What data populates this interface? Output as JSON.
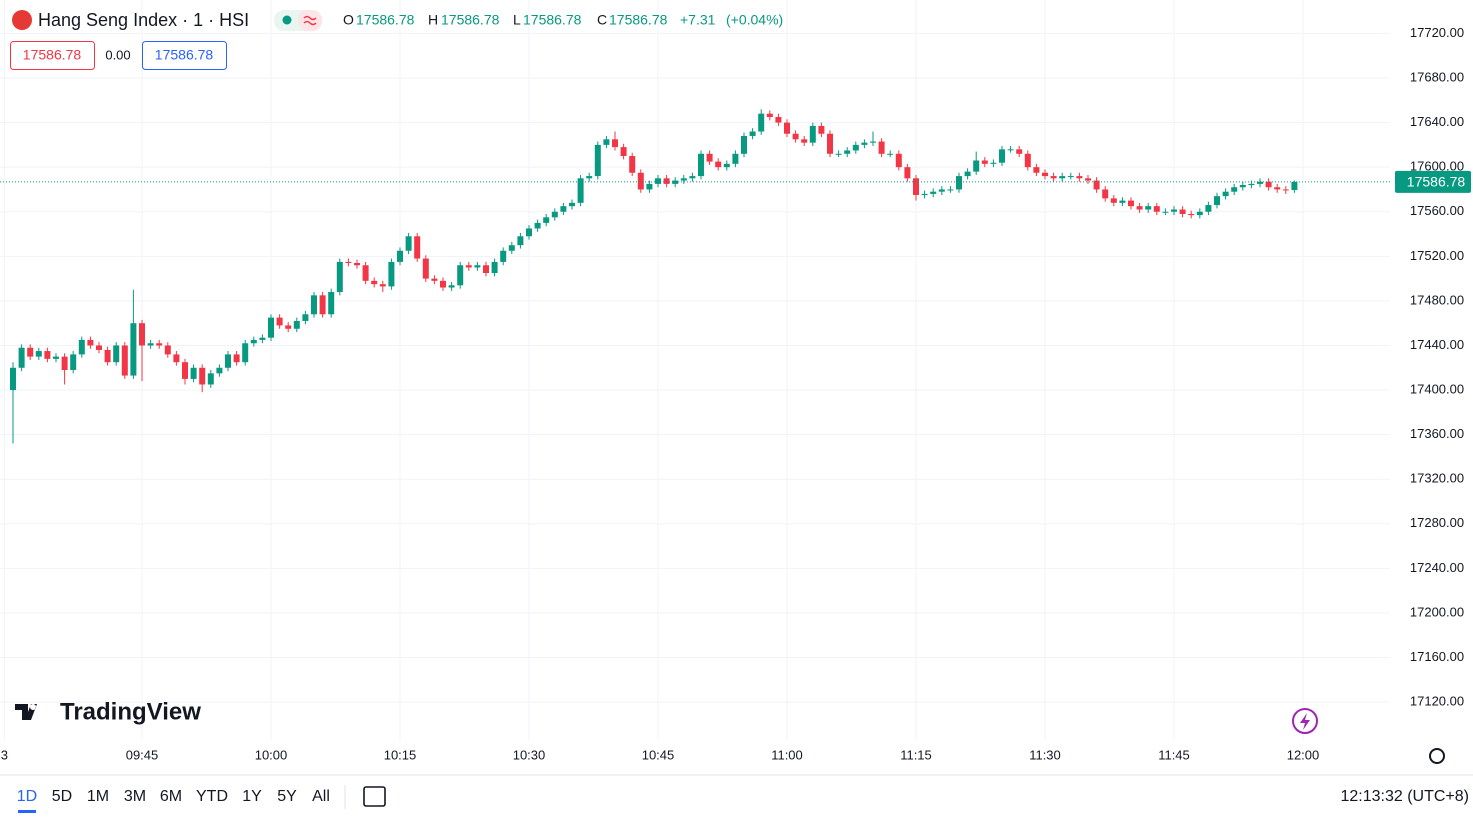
{
  "chart_data": {
    "type": "candlestick",
    "title": "Hang Seng Index · 1 · HSI",
    "ohlc_legend": [
      {
        "label": "O",
        "value": 17586.78
      },
      {
        "label": "H",
        "value": 17586.78
      },
      {
        "label": "L",
        "value": 17586.78
      },
      {
        "label": "C",
        "value": 17586.78
      }
    ],
    "change": "+7.31",
    "change_pct": "(+0.04%)",
    "price_boxes": [
      "17586.78",
      "0.00",
      "17586.78"
    ],
    "up_color": "#089981",
    "down_color": "#f23645",
    "grid": true,
    "ylim": [
      17086,
      17750
    ],
    "yticks": [
      {
        "value": 17120,
        "label": "17120.00"
      },
      {
        "value": 17160,
        "label": "17160.00"
      },
      {
        "value": 17200,
        "label": "17200.00"
      },
      {
        "value": 17240,
        "label": "17240.00"
      },
      {
        "value": 17280,
        "label": "17280.00"
      },
      {
        "value": 17320,
        "label": "17320.00"
      },
      {
        "value": 17360,
        "label": "17360.00"
      },
      {
        "value": 17400,
        "label": "17400.00"
      },
      {
        "value": 17440,
        "label": "17440.00"
      },
      {
        "value": 17480,
        "label": "17480.00"
      },
      {
        "value": 17520,
        "label": "17520.00"
      },
      {
        "value": 17560,
        "label": "17560.00"
      },
      {
        "value": 17600,
        "label": "17600.00"
      },
      {
        "value": 17640,
        "label": "17640.00"
      },
      {
        "value": 17680,
        "label": "17680.00"
      },
      {
        "value": 17720,
        "label": "17720.00"
      }
    ],
    "xticks": [
      {
        "value": -1,
        "label": "3"
      },
      {
        "value": 15,
        "label": "09:45"
      },
      {
        "value": 30,
        "label": "10:00"
      },
      {
        "value": 45,
        "label": "10:15"
      },
      {
        "value": 60,
        "label": "10:30"
      },
      {
        "value": 75,
        "label": "10:45"
      },
      {
        "value": 90,
        "label": "11:00"
      },
      {
        "value": 105,
        "label": "11:15"
      },
      {
        "value": 120,
        "label": "11:30"
      },
      {
        "value": 135,
        "label": "11:45"
      },
      {
        "value": 150,
        "label": "12:00"
      }
    ],
    "series": {
      "open": [
        17400,
        17420,
        17438,
        17430,
        17435,
        17428,
        17430,
        17418,
        17432,
        17445,
        17440,
        17436,
        17425,
        17440,
        17413,
        17460,
        17440,
        17442,
        17440,
        17432,
        17425,
        17410,
        17420,
        17405,
        17415,
        17420,
        17432,
        17425,
        17442,
        17445,
        17447,
        17465,
        17458,
        17455,
        17462,
        17468,
        17485,
        17468,
        17488,
        17515,
        17514,
        17512,
        17498,
        17495,
        17493,
        17515,
        17525,
        17538,
        17518,
        17500,
        17498,
        17492,
        17494,
        17512,
        17510,
        17512,
        17505,
        17515,
        17525,
        17530,
        17538,
        17545,
        17550,
        17555,
        17560,
        17565,
        17568,
        17590,
        17592,
        17620,
        17625,
        17618,
        17610,
        17595,
        17580,
        17585,
        17590,
        17585,
        17588,
        17590,
        17592,
        17612,
        17605,
        17600,
        17603,
        17612,
        17628,
        17632,
        17648,
        17645,
        17640,
        17630,
        17625,
        17622,
        17637,
        17630,
        17612,
        17612,
        17615,
        17620,
        17622,
        17623,
        17612,
        17612,
        17600,
        17590,
        17575,
        17576,
        17578,
        17580,
        17580,
        17592,
        17596,
        17606,
        17603,
        17604,
        17616,
        17616,
        17612,
        17600,
        17595,
        17592,
        17590,
        17592,
        17592,
        17590,
        17588,
        17580,
        17572,
        17568,
        17570,
        17565,
        17562,
        17565,
        17560,
        17560,
        17562,
        17558,
        17557,
        17560,
        17566,
        17574,
        17578,
        17582,
        17584,
        17585,
        17587,
        17582,
        17580,
        17579.47
      ],
      "high": [
        17425,
        17441,
        17441,
        17438,
        17438,
        17433,
        17433,
        17435,
        17448,
        17448,
        17443,
        17439,
        17443,
        17443,
        17490,
        17463,
        17445,
        17445,
        17443,
        17435,
        17428,
        17423,
        17423,
        17418,
        17423,
        17435,
        17435,
        17445,
        17448,
        17450,
        17468,
        17468,
        17461,
        17465,
        17471,
        17488,
        17488,
        17491,
        17518,
        17518,
        17517,
        17515,
        17501,
        17498,
        17518,
        17528,
        17541,
        17541,
        17521,
        17503,
        17501,
        17497,
        17515,
        17515,
        17515,
        17515,
        17518,
        17528,
        17533,
        17541,
        17548,
        17553,
        17558,
        17563,
        17568,
        17571,
        17593,
        17595,
        17623,
        17628,
        17632,
        17621,
        17613,
        17598,
        17588,
        17593,
        17593,
        17591,
        17593,
        17595,
        17615,
        17615,
        17608,
        17606,
        17615,
        17631,
        17635,
        17652,
        17651,
        17648,
        17643,
        17633,
        17628,
        17640,
        17640,
        17633,
        17615,
        17618,
        17623,
        17625,
        17632,
        17626,
        17615,
        17615,
        17603,
        17593,
        17579,
        17581,
        17583,
        17583,
        17595,
        17599,
        17614,
        17609,
        17607,
        17619,
        17619,
        17619,
        17615,
        17603,
        17598,
        17595,
        17595,
        17595,
        17595,
        17593,
        17591,
        17583,
        17575,
        17573,
        17573,
        17568,
        17568,
        17568,
        17563,
        17565,
        17565,
        17561,
        17563,
        17569,
        17577,
        17581,
        17585,
        17587,
        17588,
        17590,
        17590,
        17585,
        17583,
        17588
      ],
      "low": [
        17352,
        17417,
        17427,
        17427,
        17425,
        17425,
        17405,
        17415,
        17429,
        17437,
        17433,
        17422,
        17422,
        17410,
        17410,
        17408,
        17437,
        17437,
        17429,
        17422,
        17405,
        17407,
        17398,
        17402,
        17412,
        17417,
        17422,
        17422,
        17439,
        17442,
        17444,
        17455,
        17452,
        17452,
        17459,
        17465,
        17465,
        17465,
        17485,
        17511,
        17509,
        17495,
        17492,
        17488,
        17490,
        17512,
        17522,
        17515,
        17497,
        17495,
        17489,
        17489,
        17491,
        17507,
        17507,
        17502,
        17502,
        17512,
        17522,
        17527,
        17535,
        17542,
        17547,
        17552,
        17557,
        17562,
        17565,
        17587,
        17589,
        17617,
        17615,
        17607,
        17592,
        17577,
        17577,
        17582,
        17582,
        17582,
        17585,
        17587,
        17589,
        17602,
        17597,
        17597,
        17600,
        17609,
        17625,
        17629,
        17642,
        17637,
        17627,
        17622,
        17619,
        17619,
        17627,
        17609,
        17609,
        17609,
        17612,
        17617,
        17619,
        17609,
        17609,
        17597,
        17587,
        17570,
        17572,
        17573,
        17575,
        17577,
        17577,
        17589,
        17593,
        17600,
        17600,
        17601,
        17613,
        17609,
        17597,
        17592,
        17589,
        17587,
        17587,
        17589,
        17587,
        17585,
        17577,
        17569,
        17565,
        17565,
        17562,
        17559,
        17559,
        17557,
        17557,
        17557,
        17555,
        17554,
        17554,
        17557,
        17563,
        17571,
        17575,
        17579,
        17581,
        17582,
        17579,
        17577,
        17576,
        17577
      ],
      "close": [
        17420,
        17438,
        17430,
        17435,
        17428,
        17430,
        17418,
        17432,
        17445,
        17440,
        17436,
        17425,
        17440,
        17413,
        17460,
        17440,
        17442,
        17440,
        17432,
        17425,
        17410,
        17420,
        17405,
        17415,
        17420,
        17432,
        17425,
        17442,
        17445,
        17447,
        17465,
        17458,
        17455,
        17462,
        17468,
        17485,
        17468,
        17488,
        17515,
        17514,
        17512,
        17498,
        17495,
        17493,
        17515,
        17525,
        17538,
        17518,
        17500,
        17498,
        17492,
        17494,
        17512,
        17510,
        17512,
        17505,
        17515,
        17525,
        17530,
        17538,
        17545,
        17550,
        17555,
        17560,
        17565,
        17568,
        17590,
        17592,
        17620,
        17625,
        17618,
        17610,
        17595,
        17580,
        17585,
        17590,
        17585,
        17588,
        17590,
        17592,
        17612,
        17605,
        17600,
        17603,
        17612,
        17628,
        17632,
        17648,
        17645,
        17640,
        17630,
        17625,
        17622,
        17637,
        17630,
        17612,
        17612,
        17615,
        17620,
        17622,
        17623,
        17612,
        17612,
        17600,
        17590,
        17575,
        17576,
        17578,
        17580,
        17580,
        17592,
        17596,
        17606,
        17603,
        17604,
        17616,
        17616,
        17612,
        17600,
        17595,
        17592,
        17590,
        17592,
        17592,
        17590,
        17588,
        17580,
        17572,
        17568,
        17570,
        17565,
        17562,
        17565,
        17560,
        17560,
        17562,
        17558,
        17557,
        17560,
        17566,
        17574,
        17578,
        17582,
        17584,
        17585,
        17587,
        17582,
        17580,
        17579.47,
        17586.78
      ]
    }
  },
  "logo": "TradingView",
  "range_buttons": [
    "1D",
    "5D",
    "1M",
    "3M",
    "6M",
    "YTD",
    "1Y",
    "5Y",
    "All"
  ],
  "clock": "12:13:32 (UTC+8)"
}
